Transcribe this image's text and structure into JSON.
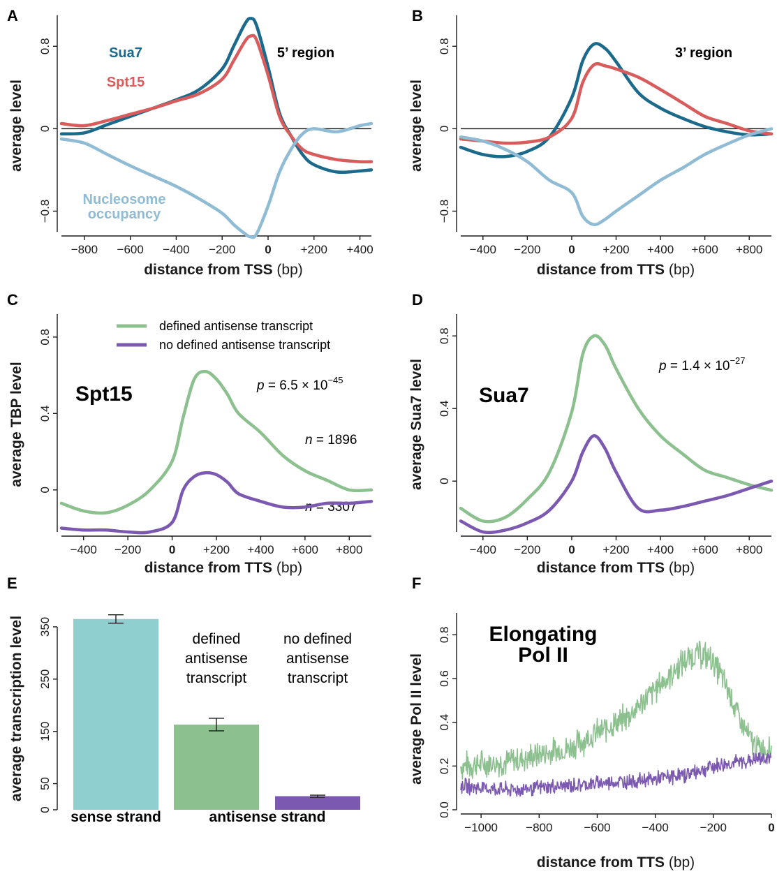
{
  "panels": {
    "A": {
      "letter": "A",
      "subtitle": "5’ region",
      "xlabel_bold": "distance from TSS",
      "xlabel_unit": " (bp)",
      "ylabel": "average level",
      "label_sua7": "Sua7",
      "label_spt15": "Spt15",
      "label_nuc_1": "Nucleosome",
      "label_nuc_2": "occupancy"
    },
    "B": {
      "letter": "B",
      "subtitle": "3’ region",
      "xlabel_bold": "distance from TTS",
      "xlabel_unit": " (bp)",
      "ylabel": "average level"
    },
    "C": {
      "letter": "C",
      "big_label": "Spt15",
      "xlabel_bold": "distance from TTS",
      "xlabel_unit": " (bp)",
      "ylabel": "average TBP level",
      "legend_defined": "defined antisense transcript",
      "legend_nodefined": "no defined antisense transcript",
      "p_label": "p",
      "p_value": " = 6.5 × 10",
      "p_exp": "−45",
      "n1_label": "n",
      "n1_value": " = 1896",
      "n2_label": "n",
      "n2_value": " = 3307"
    },
    "D": {
      "letter": "D",
      "big_label": "Sua7",
      "xlabel_bold": "distance from TTS",
      "xlabel_unit": " (bp)",
      "ylabel": "average Sua7 level",
      "p_label": "p",
      "p_value": " = 1.4 × 10",
      "p_exp": "−27"
    },
    "E": {
      "letter": "E",
      "ylabel": "average transcription level",
      "label_defined": [
        "defined",
        "antisense",
        "transcript"
      ],
      "label_nodefined": [
        "no defined",
        "antisense",
        "transcript"
      ],
      "xcat_sense": "sense strand",
      "xcat_antisense": "antisense strand"
    },
    "F": {
      "letter": "F",
      "big_label_1": "Elongating",
      "big_label_2": "Pol II",
      "xlabel_bold": "distance from TTS",
      "xlabel_unit": " (bp)",
      "ylabel": "average Pol II level"
    }
  },
  "colors": {
    "sua7": "#1b6a8c",
    "spt15": "#d85c5c",
    "nucleosome": "#8fbcd4",
    "defined": "#8cc08f",
    "nodefined": "#7b59b0",
    "bar_sense": "#8fcfcf",
    "bar_defined": "#8cc08f",
    "bar_nodefined": "#7b59b0"
  },
  "chart_data": [
    {
      "panel": "A",
      "type": "line",
      "xlabel": "distance from TSS (bp)",
      "ylabel": "average level",
      "xlim": [
        -900,
        450
      ],
      "ylim": [
        -1.0,
        1.1
      ],
      "xticks": [
        {
          "v": -800,
          "label": "−800"
        },
        {
          "v": -600,
          "label": "−600"
        },
        {
          "v": -400,
          "label": "−400"
        },
        {
          "v": -200,
          "label": "−200"
        },
        {
          "v": 0,
          "label": "0",
          "bold": true
        },
        {
          "v": 200,
          "label": "+200"
        },
        {
          "v": 400,
          "label": "+400"
        }
      ],
      "yticks": [
        {
          "v": -0.8,
          "label": "−0.8"
        },
        {
          "v": 0,
          "label": "0"
        },
        {
          "v": 0.8,
          "label": "0.8"
        }
      ],
      "hline": 0,
      "series": [
        {
          "name": "Sua7",
          "color": "#1b6a8c",
          "x": [
            -900,
            -800,
            -700,
            -600,
            -500,
            -400,
            -300,
            -200,
            -150,
            -100,
            -75,
            -50,
            0,
            50,
            100,
            150,
            200,
            300,
            400,
            450
          ],
          "y": [
            -0.05,
            -0.04,
            0.04,
            0.12,
            0.2,
            0.28,
            0.38,
            0.58,
            0.8,
            1.02,
            1.07,
            1.0,
            0.6,
            0.15,
            -0.07,
            -0.25,
            -0.35,
            -0.42,
            -0.41,
            -0.4
          ]
        },
        {
          "name": "Spt15",
          "color": "#d85c5c",
          "x": [
            -900,
            -800,
            -700,
            -600,
            -500,
            -400,
            -300,
            -200,
            -150,
            -100,
            -75,
            -50,
            0,
            50,
            100,
            150,
            200,
            300,
            400,
            450
          ],
          "y": [
            0.05,
            0.03,
            0.08,
            0.14,
            0.2,
            0.27,
            0.34,
            0.48,
            0.66,
            0.85,
            0.9,
            0.86,
            0.52,
            0.12,
            -0.07,
            -0.2,
            -0.25,
            -0.3,
            -0.32,
            -0.32
          ]
        },
        {
          "name": "Nucleosome occupancy",
          "color": "#8fbcd4",
          "x": [
            -900,
            -800,
            -700,
            -600,
            -500,
            -400,
            -300,
            -200,
            -150,
            -100,
            -75,
            -50,
            0,
            50,
            100,
            150,
            200,
            300,
            400,
            450
          ],
          "y": [
            -0.1,
            -0.14,
            -0.25,
            -0.36,
            -0.46,
            -0.56,
            -0.68,
            -0.82,
            -0.93,
            -1.02,
            -1.05,
            -1.02,
            -0.75,
            -0.42,
            -0.2,
            -0.05,
            0.0,
            -0.03,
            0.03,
            0.05
          ]
        }
      ]
    },
    {
      "panel": "B",
      "type": "line",
      "xlabel": "distance from TTS (bp)",
      "ylabel": "average level",
      "xlim": [
        -500,
        900
      ],
      "ylim": [
        -1.0,
        1.1
      ],
      "xticks": [
        {
          "v": -400,
          "label": "−400"
        },
        {
          "v": -200,
          "label": "−200"
        },
        {
          "v": 0,
          "label": "0",
          "bold": true
        },
        {
          "v": 200,
          "label": "+200"
        },
        {
          "v": 400,
          "label": "+400"
        },
        {
          "v": 600,
          "label": "+600"
        },
        {
          "v": 800,
          "label": "+800"
        }
      ],
      "yticks": [
        {
          "v": -0.8,
          "label": "−0.8"
        },
        {
          "v": 0,
          "label": "0"
        },
        {
          "v": 0.8,
          "label": "0.8"
        }
      ],
      "hline": 0,
      "series": [
        {
          "name": "Sua7",
          "color": "#1b6a8c",
          "x": [
            -500,
            -400,
            -300,
            -200,
            -100,
            0,
            50,
            100,
            150,
            200,
            300,
            400,
            500,
            600,
            700,
            800,
            900
          ],
          "y": [
            -0.18,
            -0.25,
            -0.27,
            -0.22,
            -0.08,
            0.3,
            0.66,
            0.82,
            0.78,
            0.65,
            0.35,
            0.2,
            0.1,
            0.02,
            -0.03,
            -0.06,
            -0.05
          ]
        },
        {
          "name": "Spt15",
          "color": "#d85c5c",
          "x": [
            -500,
            -400,
            -300,
            -200,
            -100,
            0,
            50,
            100,
            150,
            200,
            300,
            400,
            500,
            600,
            700,
            800,
            900
          ],
          "y": [
            -0.1,
            -0.12,
            -0.14,
            -0.13,
            -0.08,
            0.1,
            0.45,
            0.62,
            0.61,
            0.58,
            0.5,
            0.38,
            0.25,
            0.12,
            0.05,
            -0.02,
            -0.05
          ]
        },
        {
          "name": "Nucleosome occupancy",
          "color": "#8fbcd4",
          "x": [
            -500,
            -400,
            -300,
            -200,
            -100,
            0,
            50,
            100,
            150,
            200,
            300,
            400,
            500,
            600,
            700,
            800,
            900
          ],
          "y": [
            -0.08,
            -0.12,
            -0.2,
            -0.32,
            -0.5,
            -0.62,
            -0.85,
            -0.93,
            -0.88,
            -0.8,
            -0.65,
            -0.5,
            -0.38,
            -0.25,
            -0.15,
            -0.06,
            0.0
          ]
        }
      ]
    },
    {
      "panel": "C",
      "type": "line",
      "xlabel": "distance from TTS (bp)",
      "ylabel": "average TBP level",
      "xlim": [
        -500,
        900
      ],
      "ylim": [
        -0.22,
        0.92
      ],
      "xticks": [
        {
          "v": -400,
          "label": "−400"
        },
        {
          "v": -200,
          "label": "−200"
        },
        {
          "v": 0,
          "label": "0",
          "bold": true
        },
        {
          "v": 200,
          "label": "+200"
        },
        {
          "v": 400,
          "label": "+400"
        },
        {
          "v": 600,
          "label": "+600"
        },
        {
          "v": 800,
          "label": "+800"
        }
      ],
      "yticks": [
        {
          "v": 0,
          "label": "0"
        },
        {
          "v": 0.4,
          "label": "0.4"
        },
        {
          "v": 0.8,
          "label": "0.8"
        }
      ],
      "series": [
        {
          "name": "defined antisense transcript",
          "color": "#8cc08f",
          "x": [
            -500,
            -400,
            -300,
            -200,
            -100,
            0,
            50,
            100,
            150,
            200,
            250,
            300,
            400,
            500,
            600,
            700,
            800,
            900
          ],
          "y": [
            -0.07,
            -0.11,
            -0.12,
            -0.08,
            0.0,
            0.15,
            0.38,
            0.58,
            0.62,
            0.58,
            0.5,
            0.4,
            0.3,
            0.18,
            0.1,
            0.05,
            0.0,
            0.0
          ]
        },
        {
          "name": "no defined antisense transcript",
          "color": "#7b59b0",
          "x": [
            -500,
            -400,
            -300,
            -200,
            -100,
            0,
            50,
            100,
            150,
            200,
            250,
            300,
            400,
            500,
            600,
            700,
            800,
            900
          ],
          "y": [
            -0.2,
            -0.21,
            -0.21,
            -0.22,
            -0.22,
            -0.17,
            0.0,
            0.07,
            0.09,
            0.08,
            0.04,
            -0.02,
            -0.06,
            -0.09,
            -0.09,
            -0.07,
            -0.07,
            -0.06
          ]
        }
      ]
    },
    {
      "panel": "D",
      "type": "line",
      "xlabel": "distance from TTS (bp)",
      "ylabel": "average Sua7 level",
      "xlim": [
        -500,
        900
      ],
      "ylim": [
        -0.28,
        0.92
      ],
      "xticks": [
        {
          "v": -400,
          "label": "−400"
        },
        {
          "v": -200,
          "label": "−200"
        },
        {
          "v": 0,
          "label": "0",
          "bold": true
        },
        {
          "v": 200,
          "label": "+200"
        },
        {
          "v": 400,
          "label": "+400"
        },
        {
          "v": 600,
          "label": "+600"
        },
        {
          "v": 800,
          "label": "+800"
        }
      ],
      "yticks": [
        {
          "v": 0,
          "label": "0"
        },
        {
          "v": 0.4,
          "label": "0.4"
        },
        {
          "v": 0.8,
          "label": "0.8"
        }
      ],
      "series": [
        {
          "name": "defined antisense transcript",
          "color": "#8cc08f",
          "x": [
            -500,
            -400,
            -300,
            -200,
            -100,
            0,
            50,
            100,
            150,
            200,
            300,
            400,
            500,
            600,
            700,
            800,
            900
          ],
          "y": [
            -0.15,
            -0.22,
            -0.2,
            -0.1,
            0.05,
            0.38,
            0.7,
            0.8,
            0.75,
            0.62,
            0.4,
            0.25,
            0.15,
            0.06,
            0.02,
            -0.02,
            -0.05
          ]
        },
        {
          "name": "no defined antisense transcript",
          "color": "#7b59b0",
          "x": [
            -500,
            -400,
            -300,
            -200,
            -100,
            0,
            50,
            100,
            150,
            200,
            300,
            400,
            500,
            600,
            700,
            800,
            900
          ],
          "y": [
            -0.22,
            -0.28,
            -0.27,
            -0.23,
            -0.16,
            0.0,
            0.16,
            0.25,
            0.18,
            0.05,
            -0.15,
            -0.16,
            -0.14,
            -0.11,
            -0.08,
            -0.04,
            0.0
          ]
        }
      ]
    },
    {
      "panel": "E",
      "type": "bar",
      "ylabel": "average transcription level",
      "ylim": [
        0,
        390
      ],
      "yticks": [
        {
          "v": 0,
          "label": "0"
        },
        {
          "v": 50,
          "label": "50"
        },
        {
          "v": 150,
          "label": "150"
        },
        {
          "v": 250,
          "label": "250"
        },
        {
          "v": 350,
          "label": "350"
        }
      ],
      "bars": [
        {
          "name": "sense strand",
          "value": 365,
          "err": 8,
          "color": "#8fcfcf"
        },
        {
          "name": "defined antisense transcript",
          "value": 163,
          "err": 12,
          "color": "#8cc08f"
        },
        {
          "name": "no defined antisense transcript",
          "value": 26,
          "err": 2,
          "color": "#7b59b0"
        }
      ]
    },
    {
      "panel": "F",
      "type": "line",
      "xlabel": "distance from TTS (bp)",
      "ylabel": "average Pol II level",
      "xlim": [
        -1070,
        0
      ],
      "ylim": [
        0,
        0.9
      ],
      "xticks": [
        {
          "v": -1000,
          "label": "−1000"
        },
        {
          "v": -800,
          "label": "−800"
        },
        {
          "v": -600,
          "label": "−600"
        },
        {
          "v": -400,
          "label": "−400"
        },
        {
          "v": -200,
          "label": "−200"
        },
        {
          "v": 0,
          "label": "0",
          "bold": true
        }
      ],
      "yticks": [
        {
          "v": 0,
          "label": "0.0"
        },
        {
          "v": 0.2,
          "label": "0.2"
        },
        {
          "v": 0.4,
          "label": "0.4"
        },
        {
          "v": 0.6,
          "label": "0.6"
        },
        {
          "v": 0.8,
          "label": "0.8"
        }
      ],
      "series": [
        {
          "name": "defined antisense transcript",
          "color": "#8cc08f",
          "x": [
            -1070,
            -1000,
            -900,
            -800,
            -700,
            -600,
            -500,
            -400,
            -300,
            -250,
            -200,
            -150,
            -100,
            -50,
            0
          ],
          "y": [
            0.2,
            0.21,
            0.22,
            0.25,
            0.28,
            0.35,
            0.42,
            0.55,
            0.68,
            0.72,
            0.68,
            0.55,
            0.38,
            0.28,
            0.28
          ]
        },
        {
          "name": "no defined antisense transcript",
          "color": "#7b59b0",
          "x": [
            -1070,
            -1000,
            -900,
            -800,
            -700,
            -600,
            -500,
            -400,
            -300,
            -200,
            -100,
            0
          ],
          "y": [
            0.11,
            0.1,
            0.09,
            0.1,
            0.11,
            0.12,
            0.13,
            0.14,
            0.16,
            0.2,
            0.22,
            0.24
          ]
        }
      ]
    }
  ]
}
